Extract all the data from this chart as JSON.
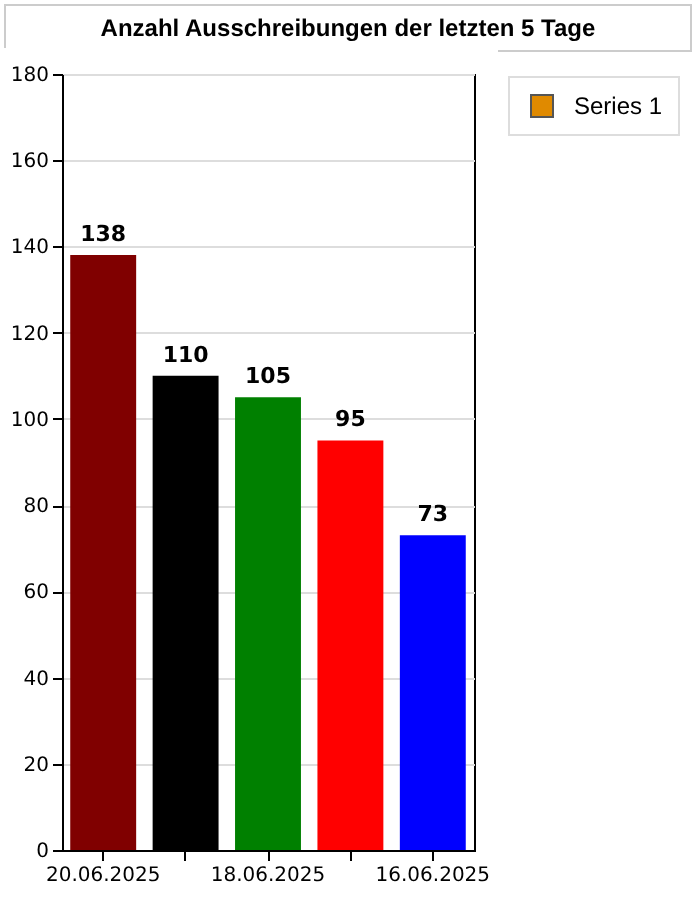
{
  "chart_data": {
    "type": "bar",
    "title": "Anzahl Ausschreibungen der letzten 5 Tage",
    "categories": [
      "20.06.2025",
      null,
      "18.06.2025",
      null,
      "16.06.2025"
    ],
    "series": [
      {
        "name": "Series 1",
        "color": "#e08a00",
        "colors": [
          "#800000",
          "#000000",
          "#008000",
          "#ff0000",
          "#0000ff"
        ],
        "values": [
          138,
          110,
          105,
          95,
          73
        ]
      }
    ],
    "ylim": [
      0,
      180
    ],
    "yticks": [
      0,
      20,
      40,
      60,
      80,
      100,
      120,
      140,
      160,
      180
    ],
    "grid": "y",
    "data_labels": true,
    "legend": "top right"
  }
}
